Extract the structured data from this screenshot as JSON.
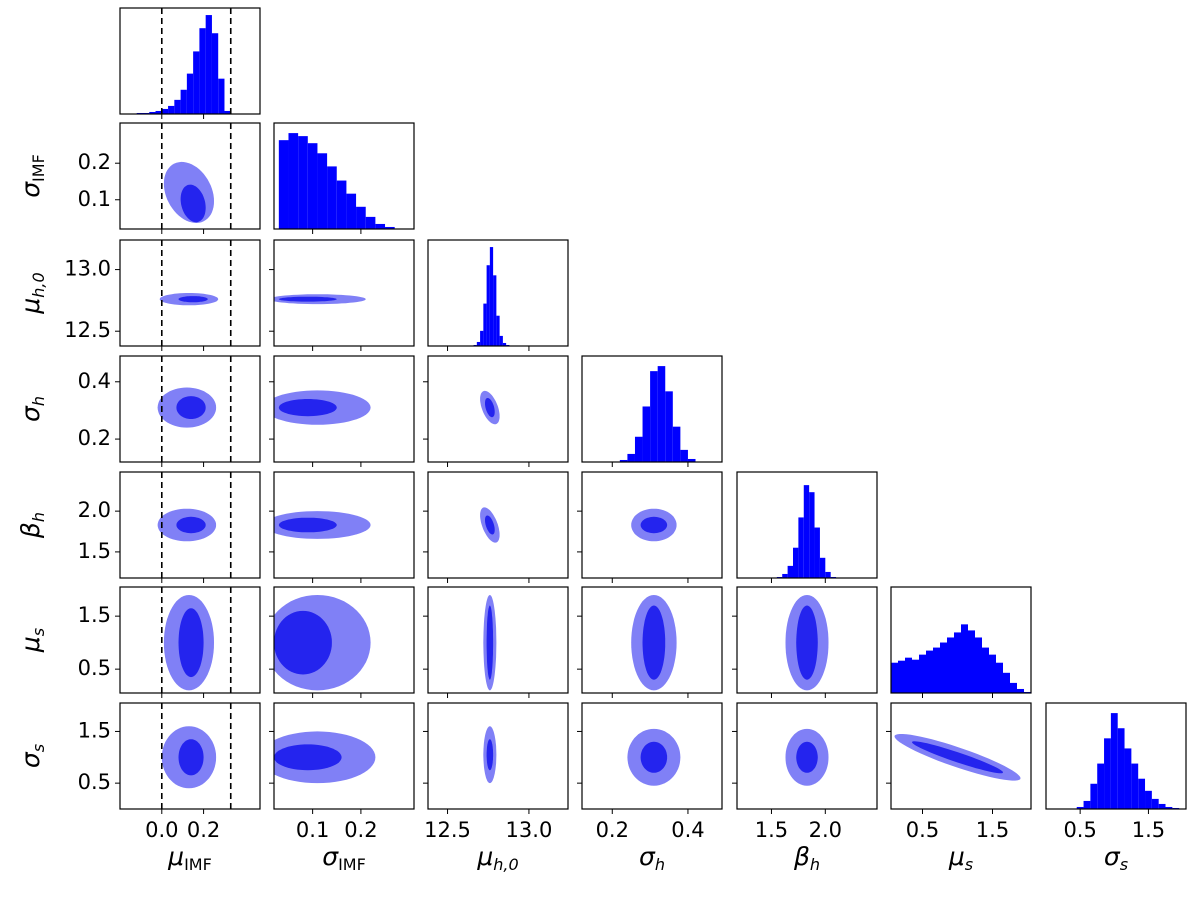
{
  "chart_data": {
    "type": "corner",
    "colors": {
      "hist": "#0000ff",
      "outer": "#8080f6",
      "inner": "#2424ee",
      "ref": "#000000"
    },
    "params": [
      {
        "symbol": "μ",
        "sub": "IMF",
        "lim": [
          -0.2,
          0.47
        ],
        "ticks": [
          {
            "value": 0,
            "label": "0.0"
          },
          0.2
        ]
      },
      {
        "symbol": "σ",
        "sub": "IMF",
        "lim": [
          0.02,
          0.31
        ],
        "ticks": [
          0.1,
          0.2
        ]
      },
      {
        "symbol": "μ",
        "sub": "h,0",
        "lim": [
          12.38,
          13.24
        ],
        "ticks": [
          12.5,
          {
            "value": 13,
            "label": "13.0"
          }
        ]
      },
      {
        "symbol": "σ",
        "sub": "h",
        "lim": [
          0.12,
          0.49
        ],
        "ticks": [
          0.2,
          0.4
        ]
      },
      {
        "symbol": "β",
        "sub": "h",
        "lim": [
          1.18,
          2.48
        ],
        "ticks": [
          1.5,
          {
            "value": 2,
            "label": "2.0"
          }
        ]
      },
      {
        "symbol": "μ",
        "sub": "s",
        "lim": [
          0.05,
          2.05
        ],
        "ticks": [
          0.5,
          1.5
        ]
      },
      {
        "symbol": "σ",
        "sub": "s",
        "lim": [
          0.0,
          2.05
        ],
        "ticks": [
          0.5,
          1.5
        ]
      }
    ],
    "ref_lines": {
      "param": 0,
      "values": [
        0,
        0.33
      ]
    },
    "histograms": [
      {
        "ylim": [
          0,
          105
        ],
        "bins": [
          -0.15,
          -0.12,
          -0.09,
          -0.06,
          -0.03,
          0,
          0.03,
          0.06,
          0.09,
          0.12,
          0.15,
          0.18,
          0.21,
          0.24,
          0.27,
          0.3,
          0.33
        ],
        "counts": [
          0,
          1,
          1,
          2,
          3,
          5,
          8,
          14,
          24,
          40,
          62,
          85,
          98,
          80,
          35,
          3
        ]
      },
      {
        "ylim": [
          0,
          105
        ],
        "bins": [
          0.03,
          0.05,
          0.07,
          0.09,
          0.11,
          0.13,
          0.15,
          0.17,
          0.19,
          0.21,
          0.23,
          0.25,
          0.27
        ],
        "counts": [
          88,
          95,
          92,
          85,
          75,
          62,
          48,
          35,
          22,
          12,
          5,
          2
        ]
      },
      {
        "ylim": [
          0,
          105
        ],
        "bins": [
          12.66,
          12.68,
          12.7,
          12.72,
          12.74,
          12.76,
          12.78,
          12.8,
          12.82,
          12.84,
          12.86,
          12.88
        ],
        "counts": [
          1,
          4,
          15,
          42,
          80,
          98,
          70,
          30,
          10,
          3,
          1
        ]
      },
      {
        "ylim": [
          0,
          105
        ],
        "bins": [
          0.22,
          0.24,
          0.26,
          0.28,
          0.3,
          0.32,
          0.34,
          0.36,
          0.38,
          0.4,
          0.42
        ],
        "counts": [
          2,
          8,
          25,
          55,
          90,
          95,
          70,
          35,
          12,
          3
        ]
      },
      {
        "ylim": [
          0,
          105
        ],
        "bins": [
          1.55,
          1.6,
          1.65,
          1.7,
          1.75,
          1.8,
          1.85,
          1.9,
          1.95,
          2.0,
          2.05,
          2.1
        ],
        "counts": [
          1,
          4,
          12,
          30,
          60,
          92,
          85,
          50,
          20,
          6,
          1
        ]
      },
      {
        "ylim": [
          0,
          105
        ],
        "bins": [
          0.05,
          0.15,
          0.25,
          0.35,
          0.45,
          0.55,
          0.65,
          0.75,
          0.85,
          0.95,
          1.05,
          1.15,
          1.25,
          1.35,
          1.45,
          1.55,
          1.65,
          1.75,
          1.85,
          1.95,
          2.05
        ],
        "counts": [
          30,
          32,
          35,
          33,
          38,
          42,
          45,
          50,
          55,
          60,
          68,
          62,
          55,
          45,
          38,
          30,
          20,
          10,
          4,
          1
        ]
      },
      {
        "ylim": [
          0,
          105
        ],
        "bins": [
          0.45,
          0.55,
          0.65,
          0.75,
          0.85,
          0.95,
          1.05,
          1.15,
          1.25,
          1.35,
          1.45,
          1.55,
          1.65,
          1.75,
          1.85,
          1.95
        ],
        "counts": [
          2,
          8,
          25,
          45,
          70,
          95,
          80,
          60,
          45,
          30,
          18,
          10,
          5,
          2,
          1
        ]
      }
    ],
    "contours": [
      {
        "x": 0,
        "y": 1,
        "levels": [
          {
            "cx": 0.13,
            "cy": 0.12,
            "rx": 0.12,
            "ry": 0.08,
            "tilt": -0.2
          },
          {
            "cx": 0.15,
            "cy": 0.09,
            "rx": 0.06,
            "ry": 0.05,
            "tilt": -0.2
          }
        ]
      },
      {
        "x": 0,
        "y": 2,
        "levels": [
          {
            "cx": 0.13,
            "cy": 12.76,
            "rx": 0.14,
            "ry": 0.05,
            "tilt": 0
          },
          {
            "cx": 0.15,
            "cy": 12.76,
            "rx": 0.07,
            "ry": 0.025,
            "tilt": 0
          }
        ]
      },
      {
        "x": 1,
        "y": 2,
        "levels": [
          {
            "cx": 0.11,
            "cy": 12.76,
            "rx": 0.1,
            "ry": 0.04,
            "tilt": 0
          },
          {
            "cx": 0.09,
            "cy": 12.76,
            "rx": 0.06,
            "ry": 0.02,
            "tilt": 0
          }
        ]
      },
      {
        "x": 0,
        "y": 3,
        "levels": [
          {
            "cx": 0.12,
            "cy": 0.31,
            "rx": 0.14,
            "ry": 0.07,
            "tilt": 0
          },
          {
            "cx": 0.14,
            "cy": 0.31,
            "rx": 0.07,
            "ry": 0.04,
            "tilt": 0
          }
        ]
      },
      {
        "x": 1,
        "y": 3,
        "levels": [
          {
            "cx": 0.11,
            "cy": 0.31,
            "rx": 0.11,
            "ry": 0.06,
            "tilt": 0
          },
          {
            "cx": 0.09,
            "cy": 0.31,
            "rx": 0.06,
            "ry": 0.03,
            "tilt": 0
          }
        ]
      },
      {
        "x": 2,
        "y": 3,
        "levels": [
          {
            "cx": 12.76,
            "cy": 0.31,
            "rx": 0.06,
            "ry": 0.05,
            "tilt": -0.5
          },
          {
            "cx": 12.76,
            "cy": 0.31,
            "rx": 0.03,
            "ry": 0.03,
            "tilt": -0.5
          }
        ]
      },
      {
        "x": 0,
        "y": 4,
        "levels": [
          {
            "cx": 0.12,
            "cy": 1.83,
            "rx": 0.14,
            "ry": 0.2,
            "tilt": 0
          },
          {
            "cx": 0.14,
            "cy": 1.83,
            "rx": 0.07,
            "ry": 0.1,
            "tilt": 0
          }
        ]
      },
      {
        "x": 1,
        "y": 4,
        "levels": [
          {
            "cx": 0.11,
            "cy": 1.83,
            "rx": 0.11,
            "ry": 0.17,
            "tilt": 0
          },
          {
            "cx": 0.09,
            "cy": 1.83,
            "rx": 0.06,
            "ry": 0.09,
            "tilt": 0
          }
        ]
      },
      {
        "x": 2,
        "y": 4,
        "levels": [
          {
            "cx": 12.76,
            "cy": 1.83,
            "rx": 0.06,
            "ry": 0.18,
            "tilt": -2
          },
          {
            "cx": 12.76,
            "cy": 1.83,
            "rx": 0.03,
            "ry": 0.1,
            "tilt": -2
          }
        ]
      },
      {
        "x": 3,
        "y": 4,
        "levels": [
          {
            "cx": 0.31,
            "cy": 1.83,
            "rx": 0.06,
            "ry": 0.2,
            "tilt": 0
          },
          {
            "cx": 0.31,
            "cy": 1.83,
            "rx": 0.035,
            "ry": 0.1,
            "tilt": 0
          }
        ]
      },
      {
        "x": 0,
        "y": 5,
        "levels": [
          {
            "cx": 0.13,
            "cy": 1.0,
            "rx": 0.12,
            "ry": 0.9,
            "tilt": 0
          },
          {
            "cx": 0.14,
            "cy": 1.0,
            "rx": 0.06,
            "ry": 0.65,
            "tilt": 0
          }
        ]
      },
      {
        "x": 1,
        "y": 5,
        "levels": [
          {
            "cx": 0.11,
            "cy": 1.0,
            "rx": 0.11,
            "ry": 0.9,
            "tilt": 0
          },
          {
            "cx": 0.08,
            "cy": 1.0,
            "rx": 0.06,
            "ry": 0.6,
            "tilt": 0
          }
        ]
      },
      {
        "x": 2,
        "y": 5,
        "levels": [
          {
            "cx": 12.76,
            "cy": 1.0,
            "rx": 0.04,
            "ry": 0.9,
            "tilt": 0
          },
          {
            "cx": 12.76,
            "cy": 1.0,
            "rx": 0.02,
            "ry": 0.7,
            "tilt": 0
          }
        ]
      },
      {
        "x": 3,
        "y": 5,
        "levels": [
          {
            "cx": 0.31,
            "cy": 1.0,
            "rx": 0.06,
            "ry": 0.9,
            "tilt": 0
          },
          {
            "cx": 0.31,
            "cy": 1.0,
            "rx": 0.03,
            "ry": 0.7,
            "tilt": 0
          }
        ]
      },
      {
        "x": 4,
        "y": 5,
        "levels": [
          {
            "cx": 1.83,
            "cy": 1.0,
            "rx": 0.2,
            "ry": 0.9,
            "tilt": 0
          },
          {
            "cx": 1.83,
            "cy": 1.0,
            "rx": 0.1,
            "ry": 0.7,
            "tilt": 0
          }
        ]
      },
      {
        "x": 0,
        "y": 6,
        "levels": [
          {
            "cx": 0.13,
            "cy": 1.0,
            "rx": 0.13,
            "ry": 0.6,
            "tilt": 0
          },
          {
            "cx": 0.14,
            "cy": 1.0,
            "rx": 0.06,
            "ry": 0.35,
            "tilt": 0
          }
        ]
      },
      {
        "x": 1,
        "y": 6,
        "levels": [
          {
            "cx": 0.11,
            "cy": 1.0,
            "rx": 0.12,
            "ry": 0.5,
            "tilt": 0
          },
          {
            "cx": 0.09,
            "cy": 1.0,
            "rx": 0.07,
            "ry": 0.25,
            "tilt": 0
          }
        ]
      },
      {
        "x": 2,
        "y": 6,
        "levels": [
          {
            "cx": 12.76,
            "cy": 1.05,
            "rx": 0.04,
            "ry": 0.55,
            "tilt": 0
          },
          {
            "cx": 12.76,
            "cy": 1.05,
            "rx": 0.02,
            "ry": 0.3,
            "tilt": 0
          }
        ]
      },
      {
        "x": 3,
        "y": 6,
        "levels": [
          {
            "cx": 0.31,
            "cy": 1.0,
            "rx": 0.07,
            "ry": 0.55,
            "tilt": 0
          },
          {
            "cx": 0.31,
            "cy": 1.0,
            "rx": 0.035,
            "ry": 0.3,
            "tilt": 0
          }
        ]
      },
      {
        "x": 4,
        "y": 6,
        "levels": [
          {
            "cx": 1.83,
            "cy": 1.0,
            "rx": 0.2,
            "ry": 0.55,
            "tilt": 0
          },
          {
            "cx": 1.83,
            "cy": 1.0,
            "rx": 0.1,
            "ry": 0.3,
            "tilt": 0
          }
        ]
      },
      {
        "x": 5,
        "y": 6,
        "levels": [
          {
            "cx": 1.0,
            "cy": 1.0,
            "rx": 0.9,
            "ry": 0.2,
            "tilt": -0.45
          },
          {
            "cx": 1.0,
            "cy": 1.0,
            "rx": 0.65,
            "ry": 0.1,
            "tilt": -0.45
          }
        ]
      }
    ]
  }
}
